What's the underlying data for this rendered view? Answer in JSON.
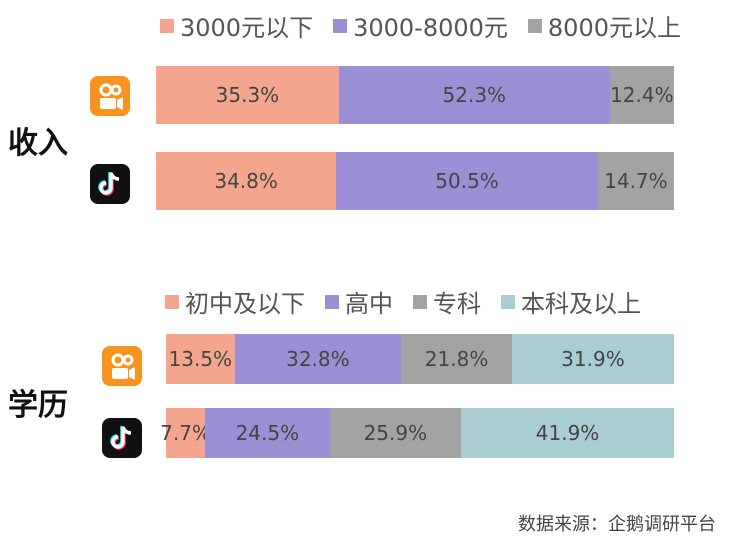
{
  "chart_data": [
    {
      "type": "bar",
      "orientation": "horizontal-stacked",
      "title": "收入",
      "legend": [
        "3000元以下",
        "3000-8000元",
        "8000元以上"
      ],
      "colors": [
        "#f4a58e",
        "#9b8fd6",
        "#a3a3a3"
      ],
      "rows": [
        {
          "app": "快手",
          "values": [
            35.3,
            52.3,
            12.4
          ],
          "labels": [
            "35.3%",
            "52.3%",
            "12.4%"
          ]
        },
        {
          "app": "抖音",
          "values": [
            34.8,
            50.5,
            14.7
          ],
          "labels": [
            "34.8%",
            "50.5%",
            "14.7%"
          ]
        }
      ]
    },
    {
      "type": "bar",
      "orientation": "horizontal-stacked",
      "title": "学历",
      "legend": [
        "初中及以下",
        "高中",
        "专科",
        "本科及以上"
      ],
      "colors": [
        "#f4a58e",
        "#9b8fd6",
        "#a3a3a3",
        "#a9cdd3"
      ],
      "rows": [
        {
          "app": "快手",
          "values": [
            13.5,
            32.8,
            21.8,
            31.9
          ],
          "labels": [
            "13.5%",
            "32.8%",
            "21.8%",
            "31.9%"
          ]
        },
        {
          "app": "抖音",
          "values": [
            7.7,
            24.5,
            25.9,
            41.9
          ],
          "labels": [
            "7.7%",
            "24.5%",
            "25.9%",
            "41.9%"
          ]
        }
      ]
    }
  ],
  "source": "数据来源：企鹅调研平台",
  "icons": [
    "kuaishou-logo-icon",
    "tiktok-logo-icon"
  ]
}
